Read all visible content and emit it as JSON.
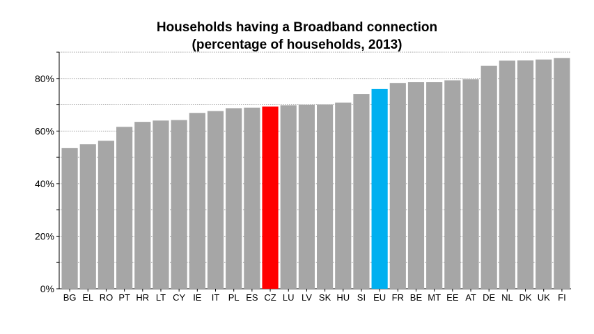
{
  "chart_data": {
    "type": "bar",
    "title": "Households having a Broadband connection",
    "subtitle": "(percentage of households, 2013)",
    "categories": [
      "BG",
      "EL",
      "RO",
      "PT",
      "HR",
      "LT",
      "CY",
      "IE",
      "IT",
      "PL",
      "ES",
      "CZ",
      "LU",
      "LV",
      "SK",
      "HU",
      "SI",
      "EU",
      "FR",
      "BE",
      "MT",
      "EE",
      "AT",
      "DE",
      "NL",
      "DK",
      "UK",
      "FI"
    ],
    "values": [
      53.5,
      55,
      56.3,
      61.6,
      63.5,
      64,
      64.2,
      66.9,
      67.6,
      68.7,
      68.9,
      69.3,
      69.8,
      70,
      70.1,
      70.8,
      74.1,
      76,
      78.3,
      78.6,
      78.6,
      79.3,
      79.7,
      84.8,
      86.8,
      86.9,
      87.2,
      87.8
    ],
    "ylim": [
      0,
      90
    ],
    "yticks": [
      0,
      20,
      40,
      60,
      80
    ],
    "ytick_labels": [
      "0%",
      "20%",
      "40%",
      "60%",
      "80%"
    ],
    "grid": true,
    "colors": {
      "default": "#a6a6a6",
      "CZ": "#ff0000",
      "EU": "#00b0f0",
      "grid": "#a0a0a0"
    }
  }
}
